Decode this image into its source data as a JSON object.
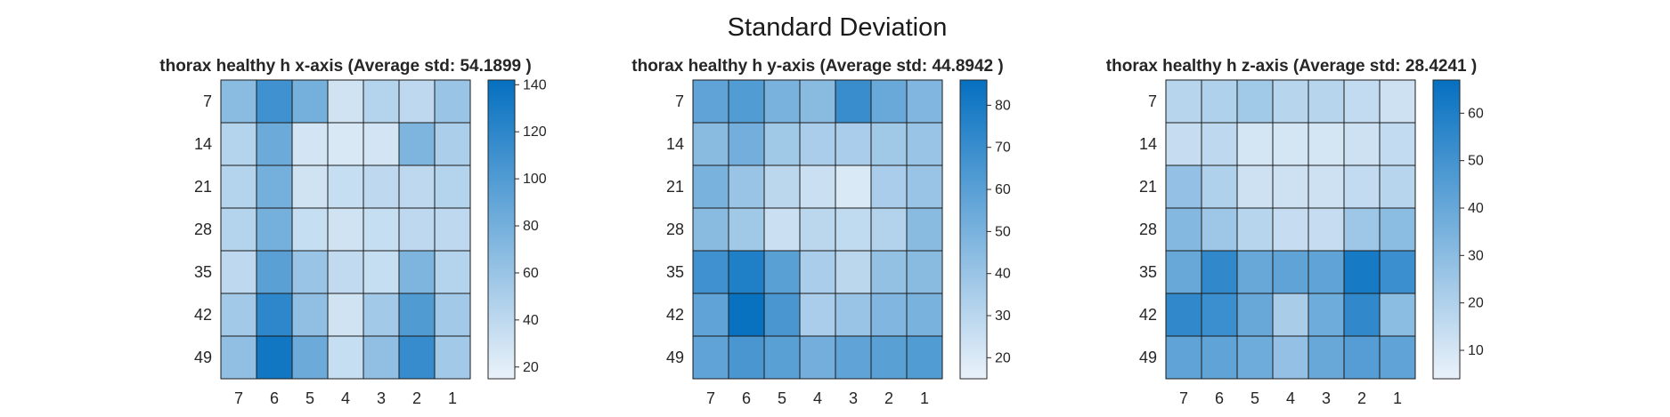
{
  "figure_title": "Standard Deviation",
  "chart_data": [
    {
      "type": "heatmap",
      "title": "thorax healthy h x-axis (Average std: 54.1899 )",
      "x_categories": [
        "7",
        "6",
        "5",
        "4",
        "3",
        "2",
        "1"
      ],
      "y_categories": [
        "7",
        "14",
        "21",
        "28",
        "35",
        "42",
        "49"
      ],
      "values": [
        [
          68,
          110,
          80,
          30,
          45,
          40,
          60
        ],
        [
          45,
          85,
          28,
          25,
          28,
          75,
          50
        ],
        [
          45,
          80,
          30,
          35,
          40,
          40,
          45
        ],
        [
          45,
          80,
          35,
          30,
          35,
          40,
          40
        ],
        [
          40,
          95,
          60,
          38,
          35,
          75,
          45
        ],
        [
          55,
          120,
          65,
          30,
          55,
          100,
          55
        ],
        [
          65,
          135,
          85,
          35,
          65,
          115,
          55
        ]
      ],
      "colorbar": {
        "range": [
          15,
          142
        ],
        "ticks": [
          20,
          40,
          60,
          80,
          100,
          120,
          140
        ]
      },
      "colors": {
        "low": "#eaf2fa",
        "high": "#0570c0"
      }
    },
    {
      "type": "heatmap",
      "title": "thorax healthy h y-axis (Average std: 44.8942 )",
      "x_categories": [
        "7",
        "6",
        "5",
        "4",
        "3",
        "2",
        "1"
      ],
      "y_categories": [
        "7",
        "14",
        "21",
        "28",
        "35",
        "42",
        "49"
      ],
      "values": [
        [
          58,
          62,
          50,
          45,
          70,
          55,
          48
        ],
        [
          45,
          52,
          38,
          35,
          35,
          38,
          40
        ],
        [
          50,
          40,
          30,
          25,
          20,
          35,
          40
        ],
        [
          45,
          38,
          25,
          30,
          28,
          32,
          45
        ],
        [
          68,
          78,
          60,
          35,
          30,
          42,
          45
        ],
        [
          58,
          85,
          65,
          35,
          40,
          48,
          50
        ],
        [
          58,
          65,
          60,
          52,
          58,
          60,
          62
        ]
      ],
      "colorbar": {
        "range": [
          15,
          86
        ],
        "ticks": [
          20,
          30,
          40,
          50,
          60,
          70,
          80
        ]
      },
      "colors": {
        "low": "#eaf2fa",
        "high": "#0570c0"
      }
    },
    {
      "type": "heatmap",
      "title": "thorax healthy h z-axis (Average std: 28.4241 )",
      "x_categories": [
        "7",
        "6",
        "5",
        "4",
        "3",
        "2",
        "1"
      ],
      "y_categories": [
        "7",
        "14",
        "21",
        "28",
        "35",
        "42",
        "49"
      ],
      "values": [
        [
          18,
          20,
          24,
          18,
          18,
          15,
          12
        ],
        [
          14,
          16,
          10,
          10,
          10,
          12,
          15
        ],
        [
          28,
          20,
          12,
          12,
          12,
          15,
          18
        ],
        [
          32,
          25,
          18,
          14,
          14,
          25,
          30
        ],
        [
          40,
          55,
          40,
          42,
          42,
          62,
          52
        ],
        [
          55,
          52,
          40,
          22,
          38,
          55,
          30
        ],
        [
          42,
          42,
          38,
          28,
          40,
          45,
          42
        ]
      ],
      "colorbar": {
        "range": [
          4,
          67
        ],
        "ticks": [
          10,
          20,
          30,
          40,
          50,
          60
        ]
      },
      "colors": {
        "low": "#eaf2fa",
        "high": "#0570c0"
      }
    }
  ]
}
